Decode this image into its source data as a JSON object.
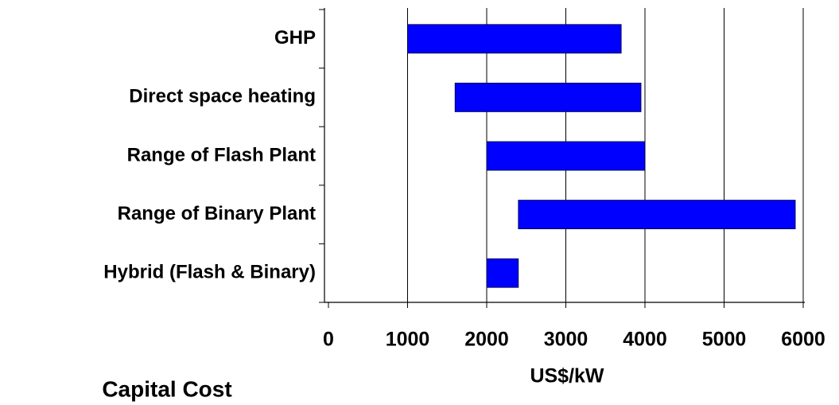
{
  "chart_data": {
    "type": "range_bar",
    "orientation": "horizontal",
    "categories": [
      "GHP",
      "Direct space heating",
      "Range of Flash Plant",
      "Range of Binary Plant",
      "Hybrid (Flash & Binary)"
    ],
    "low": [
      1000,
      1600,
      2000,
      2400,
      2000
    ],
    "high": [
      3700,
      3950,
      4000,
      5900,
      2400
    ],
    "color": "#0000ff",
    "xlim": [
      0,
      6000
    ],
    "xticks": [
      0,
      1000,
      2000,
      3000,
      4000,
      5000,
      6000
    ],
    "xlabel": "US$/kW",
    "annotation": "Capital Cost",
    "grid": true
  }
}
